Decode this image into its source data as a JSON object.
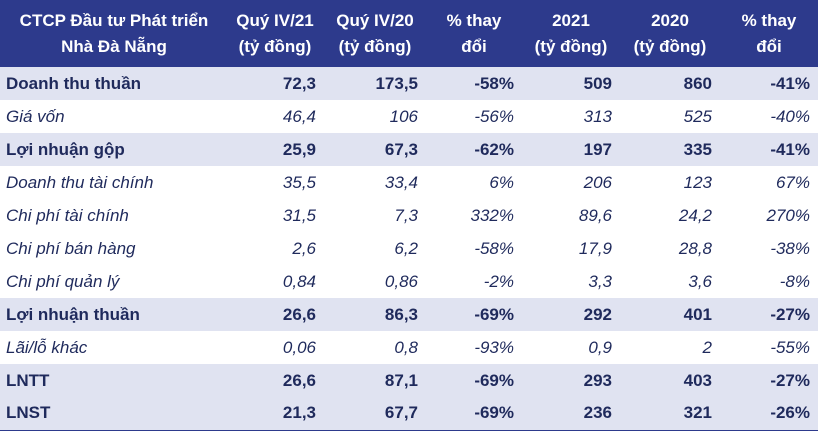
{
  "header": {
    "company": [
      "CTCP Đầu tư Phát triển",
      "Nhà Đà Nẵng"
    ],
    "q4_21": [
      "Quý IV/21",
      "(tỷ đồng)"
    ],
    "q4_20": [
      "Quý IV/20",
      "(tỷ đồng)"
    ],
    "pct_q": [
      "% thay",
      "đổi"
    ],
    "y2021": [
      "2021",
      "(tỷ đồng)"
    ],
    "y2020": [
      "2020",
      "(tỷ đồng)"
    ],
    "pct_y": [
      "% thay",
      "đổi"
    ]
  },
  "rows": [
    {
      "label": "Doanh thu thuần",
      "q4_21": "72,3",
      "q4_20": "173,5",
      "pct_q": "-58%",
      "y2021": "509",
      "y2020": "860",
      "pct_y": "-41%"
    },
    {
      "label": "Giá vốn",
      "q4_21": "46,4",
      "q4_20": "106",
      "pct_q": "-56%",
      "y2021": "313",
      "y2020": "525",
      "pct_y": "-40%"
    },
    {
      "label": "Lợi nhuận gộp",
      "q4_21": "25,9",
      "q4_20": "67,3",
      "pct_q": "-62%",
      "y2021": "197",
      "y2020": "335",
      "pct_y": "-41%"
    },
    {
      "label": "Doanh thu tài chính",
      "q4_21": "35,5",
      "q4_20": "33,4",
      "pct_q": "6%",
      "y2021": "206",
      "y2020": "123",
      "pct_y": "67%"
    },
    {
      "label": "Chi phí tài chính",
      "q4_21": "31,5",
      "q4_20": "7,3",
      "pct_q": "332%",
      "y2021": "89,6",
      "y2020": "24,2",
      "pct_y": "270%"
    },
    {
      "label": "Chi phí bán hàng",
      "q4_21": "2,6",
      "q4_20": "6,2",
      "pct_q": "-58%",
      "y2021": "17,9",
      "y2020": "28,8",
      "pct_y": "-38%"
    },
    {
      "label": "Chi phí quản lý",
      "q4_21": "0,84",
      "q4_20": "0,86",
      "pct_q": "-2%",
      "y2021": "3,3",
      "y2020": "3,6",
      "pct_y": "-8%"
    },
    {
      "label": "Lợi nhuận thuần",
      "q4_21": "26,6",
      "q4_20": "86,3",
      "pct_q": "-69%",
      "y2021": "292",
      "y2020": "401",
      "pct_y": "-27%"
    },
    {
      "label": "Lãi/lỗ khác",
      "q4_21": "0,06",
      "q4_20": "0,8",
      "pct_q": "-93%",
      "y2021": "0,9",
      "y2020": "2",
      "pct_y": "-55%"
    },
    {
      "label": "LNTT",
      "q4_21": "26,6",
      "q4_20": "87,1",
      "pct_q": "-69%",
      "y2021": "293",
      "y2020": "403",
      "pct_y": "-27%"
    },
    {
      "label": "LNST",
      "q4_21": "21,3",
      "q4_20": "67,7",
      "pct_q": "-69%",
      "y2021": "236",
      "y2020": "321",
      "pct_y": "-26%"
    }
  ],
  "colors": {
    "header_bg": "#2d3a8c",
    "shaded_row": "#e0e3f1",
    "text": "#1f2a5c"
  }
}
